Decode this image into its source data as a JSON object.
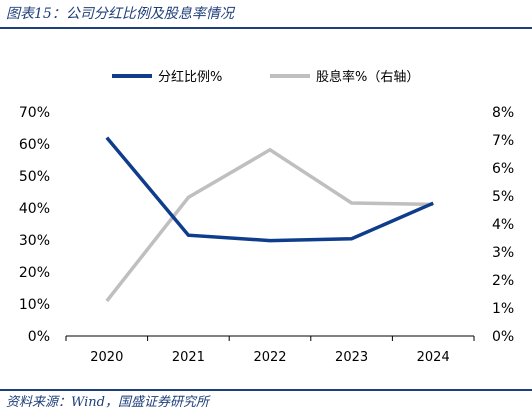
{
  "header": {
    "title": "图表15：公司分红比例及股息率情况"
  },
  "footer": {
    "source": "资料来源：Wind，国盛证券研究所"
  },
  "colors": {
    "accent": "#1f3f7a",
    "series_payout": "#0f3d8c",
    "series_yield": "#bfbfbf"
  },
  "chart_data": {
    "type": "line",
    "categories": [
      "2020",
      "2021",
      "2022",
      "2023",
      "2024"
    ],
    "series": [
      {
        "name": "分红比例%",
        "axis": "left",
        "color": "#0f3d8c",
        "values": [
          62,
          31.5,
          29.8,
          30.4,
          41.5
        ]
      },
      {
        "name": "股息率%（右轴）",
        "axis": "right",
        "color": "#bfbfbf",
        "values": [
          1.25,
          4.95,
          6.65,
          4.75,
          4.7
        ]
      }
    ],
    "y_left": {
      "min": 0,
      "max": 70,
      "step": 10,
      "tick_labels": [
        "0%",
        "10%",
        "20%",
        "30%",
        "40%",
        "50%",
        "60%",
        "70%"
      ]
    },
    "y_right": {
      "min": 0,
      "max": 8,
      "step": 1,
      "tick_labels": [
        "0%",
        "1%",
        "2%",
        "3%",
        "4%",
        "5%",
        "6%",
        "7%",
        "8%"
      ]
    },
    "grid": false,
    "legend_position": "top-center"
  }
}
